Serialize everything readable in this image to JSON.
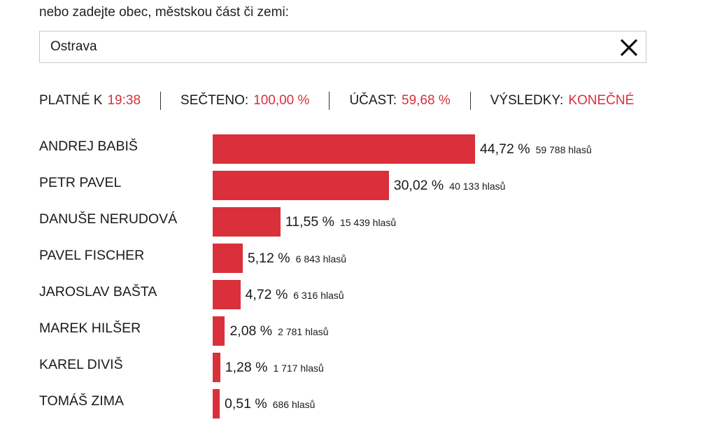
{
  "search": {
    "prompt": "nebo zadejte obec, městskou část či zemi:",
    "value": "Ostrava",
    "clear_icon": "close-icon"
  },
  "status": {
    "valid_label": "PLATNÉ K",
    "valid_value": "19:38",
    "counted_label": "SEČTENO:",
    "counted_value": "100,00 %",
    "turnout_label": "ÚČAST:",
    "turnout_value": "59,68 %",
    "results_label": "VÝSLEDKY:",
    "results_value": "KONEČNÉ"
  },
  "colors": {
    "accent": "#d9303b",
    "text": "#1a1a1a",
    "border": "#c9c9c9"
  },
  "chart_data": {
    "type": "bar",
    "categories": [
      "ANDREJ BABIŠ",
      "PETR PAVEL",
      "DANUŠE NERUDOVÁ",
      "PAVEL FISCHER",
      "JAROSLAV BAŠTA",
      "MAREK HILŠER",
      "KAREL DIVIŠ",
      "TOMÁŠ ZIMA"
    ],
    "values": [
      44.72,
      30.02,
      11.55,
      5.12,
      4.72,
      2.08,
      1.28,
      0.51
    ],
    "percent_labels": [
      "44,72 %",
      "30,02 %",
      "11,55 %",
      "5,12 %",
      "4,72 %",
      "2,08 %",
      "1,28 %",
      "0,51 %"
    ],
    "votes": [
      59788,
      40133,
      15439,
      6843,
      6316,
      2781,
      1717,
      686
    ],
    "vote_labels": [
      "59 788 hlasů",
      "40 133 hlasů",
      "15 439 hlasů",
      "6 843 hlasů",
      "6 316 hlasů",
      "2 781 hlasů",
      "1 717 hlasů",
      "686 hlasů"
    ],
    "orientation": "horizontal",
    "bar_color": "#d9303b"
  }
}
